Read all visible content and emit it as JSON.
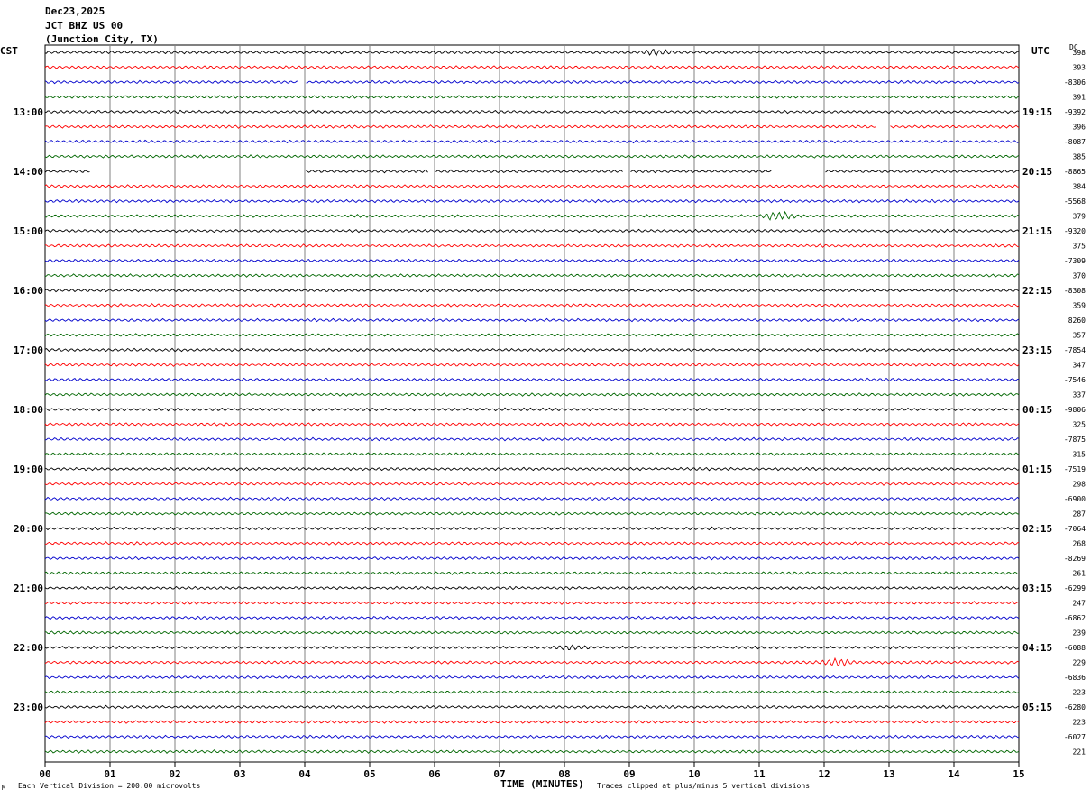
{
  "header": {
    "date": "Dec23,2025",
    "station": "JCT BHZ US 00",
    "location": "(Junction City, TX)"
  },
  "left_zone_label": "CST",
  "right_zone_label": "UTC",
  "dc_label": "DC",
  "footnote_left": "Each Vertical Division =  200.00 microvolts",
  "footnote_right": "Traces clipped at plus/minus 5 vertical divisions",
  "footnote_mark": "M",
  "colors": {
    "row_cycle": [
      "#000000",
      "#ff0000",
      "#0000cc",
      "#006600"
    ],
    "grid": "#808080"
  },
  "chart_data": {
    "type": "line",
    "title": "",
    "xlabel": "TIME (MINUTES)",
    "ylabel": "",
    "xlim": [
      0,
      15
    ],
    "x_ticks": [
      "00",
      "01",
      "02",
      "03",
      "04",
      "05",
      "06",
      "07",
      "08",
      "09",
      "10",
      "11",
      "12",
      "13",
      "14",
      "15"
    ],
    "left_hour_labels": [
      "13:00",
      "14:00",
      "15:00",
      "16:00",
      "17:00",
      "18:00",
      "19:00",
      "20:00",
      "21:00",
      "22:00",
      "23:00"
    ],
    "right_hour_labels": [
      "19:15",
      "20:15",
      "21:15",
      "22:15",
      "23:15",
      "00:15",
      "01:15",
      "02:15",
      "03:15",
      "04:15",
      "05:15"
    ],
    "hour_label_rows": [
      4,
      8,
      12,
      16,
      20,
      24,
      28,
      32,
      36,
      40,
      44
    ],
    "row_count": 48,
    "row_dc_values": [
      "398",
      "393",
      "-8306",
      "391",
      "-9392",
      "396",
      "-8087",
      "385",
      "-8865",
      "384",
      "-5568",
      "379",
      "-9320",
      "375",
      "-7309",
      "370",
      "-8308",
      "359",
      "8260",
      "357",
      "-7854",
      "347",
      "-7546",
      "337",
      "-9806",
      "325",
      "-7875",
      "315",
      "-7519",
      "298",
      "-6900",
      "287",
      "-7064",
      "268",
      "-8269",
      "261",
      "-6299",
      "247",
      "-6862",
      "239",
      "-6088",
      "229",
      "-6836",
      "223",
      "-6280",
      "223",
      "-6027",
      "221"
    ],
    "gaps": [
      {
        "row": 8,
        "from_min": 0.7,
        "to_min": 4.0
      },
      {
        "row": 8,
        "from_min": 5.9,
        "to_min": 6.0
      },
      {
        "row": 8,
        "from_min": 8.9,
        "to_min": 9.0
      },
      {
        "row": 8,
        "from_min": 11.2,
        "to_min": 12.0
      },
      {
        "row": 5,
        "from_min": 12.8,
        "to_min": 13.0
      },
      {
        "row": 2,
        "from_min": 3.9,
        "to_min": 4.0
      }
    ],
    "bursts": [
      {
        "row": 11,
        "at_min": 11.3,
        "strength": 3
      },
      {
        "row": 41,
        "at_min": 12.2,
        "strength": 2.5
      },
      {
        "row": 0,
        "at_min": 9.4,
        "strength": 1.5
      },
      {
        "row": 40,
        "at_min": 8.1,
        "strength": 1.6
      }
    ],
    "vertical_division_microvolts": 200.0,
    "clip_divisions": 5
  }
}
